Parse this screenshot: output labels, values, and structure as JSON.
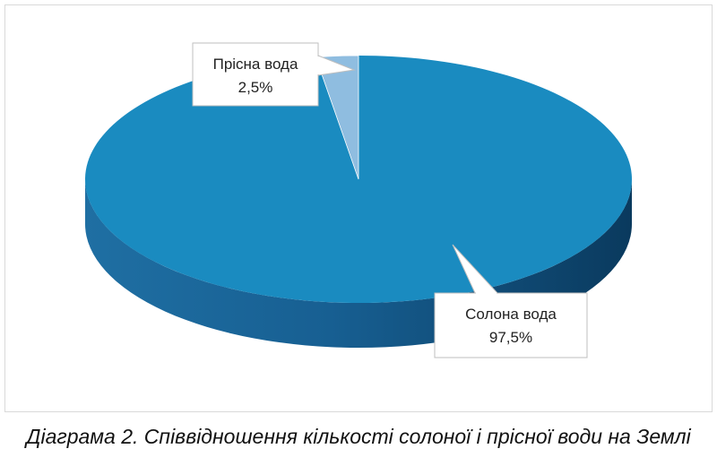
{
  "chart_data": {
    "type": "pie",
    "title": "",
    "slices": [
      {
        "label": "Солона вода",
        "value": 97.5,
        "value_label": "97,5%",
        "color": "#1a8bc0"
      },
      {
        "label": "Прісна вода",
        "value": 2.5,
        "value_label": "2,5%",
        "color": "#8fbde0"
      }
    ],
    "style": "3d",
    "legend": "none",
    "data_labels": "callouts"
  },
  "caption": "Діаграма 2. Співвідношення кількості солоної і прісної води на Землі",
  "colors": {
    "salt_side": "#124f7c",
    "fresh_side": "#6a9cc6",
    "callout_border": "#bfbfbf"
  }
}
